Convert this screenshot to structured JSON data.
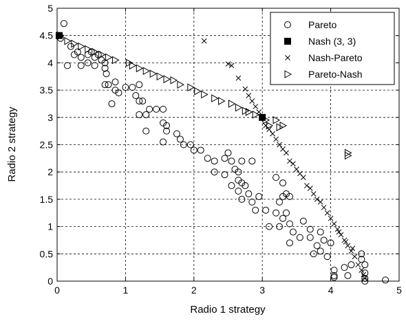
{
  "chart_data": {
    "type": "scatter",
    "title": "",
    "xlabel": "Radio 1 strategy",
    "ylabel": "Radio 2 strategy",
    "xlim": [
      0,
      5
    ],
    "ylim": [
      0,
      5
    ],
    "xticks": [
      "0",
      "1",
      "2",
      "3",
      "4",
      "5"
    ],
    "yticks": [
      "0",
      "0.5",
      "1",
      "1.5",
      "2",
      "2.5",
      "3",
      "3.5",
      "4",
      "4.5",
      "5"
    ],
    "grid": true,
    "legend_position": "top-right",
    "series": [
      {
        "name": "Pareto",
        "marker": "circle",
        "points": [
          [
            0.1,
            4.72
          ],
          [
            0.05,
            4.45
          ],
          [
            0.2,
            4.3
          ],
          [
            0.3,
            4.2
          ],
          [
            0.25,
            4.15
          ],
          [
            0.35,
            4.1
          ],
          [
            0.45,
            4.15
          ],
          [
            0.5,
            4.2
          ],
          [
            0.55,
            4.1
          ],
          [
            0.6,
            4.15
          ],
          [
            0.65,
            4.05
          ],
          [
            0.7,
            4.0
          ],
          [
            0.15,
            3.95
          ],
          [
            0.35,
            3.95
          ],
          [
            0.45,
            4.0
          ],
          [
            0.55,
            3.95
          ],
          [
            0.7,
            3.9
          ],
          [
            0.72,
            3.8
          ],
          [
            0.75,
            3.6
          ],
          [
            0.85,
            3.65
          ],
          [
            0.7,
            3.6
          ],
          [
            0.85,
            3.5
          ],
          [
            0.9,
            3.45
          ],
          [
            1.0,
            3.55
          ],
          [
            1.1,
            3.55
          ],
          [
            0.8,
            3.25
          ],
          [
            1.2,
            3.6
          ],
          [
            1.15,
            3.4
          ],
          [
            1.2,
            3.3
          ],
          [
            1.25,
            3.3
          ],
          [
            1.35,
            3.15
          ],
          [
            1.45,
            3.15
          ],
          [
            1.55,
            3.15
          ],
          [
            1.3,
            3.05
          ],
          [
            1.2,
            3.05
          ],
          [
            1.3,
            2.75
          ],
          [
            1.55,
            2.9
          ],
          [
            1.6,
            2.85
          ],
          [
            1.6,
            2.75
          ],
          [
            1.55,
            2.55
          ],
          [
            1.75,
            2.7
          ],
          [
            1.8,
            2.6
          ],
          [
            1.85,
            2.5
          ],
          [
            1.95,
            2.5
          ],
          [
            2.0,
            2.4
          ],
          [
            2.1,
            2.4
          ],
          [
            2.2,
            2.25
          ],
          [
            2.3,
            2.2
          ],
          [
            2.45,
            2.25
          ],
          [
            2.55,
            2.2
          ],
          [
            2.5,
            2.35
          ],
          [
            2.6,
            2.05
          ],
          [
            2.65,
            2.0
          ],
          [
            2.7,
            2.2
          ],
          [
            2.85,
            2.2
          ],
          [
            2.3,
            2.0
          ],
          [
            2.45,
            1.95
          ],
          [
            2.65,
            1.85
          ],
          [
            2.7,
            1.8
          ],
          [
            2.75,
            1.75
          ],
          [
            2.55,
            1.75
          ],
          [
            2.65,
            1.65
          ],
          [
            2.7,
            1.5
          ],
          [
            2.8,
            1.6
          ],
          [
            2.85,
            1.45
          ],
          [
            2.95,
            1.55
          ],
          [
            2.9,
            1.3
          ],
          [
            3.05,
            1.3
          ],
          [
            3.1,
            1.0
          ],
          [
            3.2,
            1.25
          ],
          [
            3.3,
            1.15
          ],
          [
            3.35,
            1.25
          ],
          [
            3.25,
            1.45
          ],
          [
            3.3,
            1.55
          ],
          [
            3.35,
            1.6
          ],
          [
            3.3,
            1.8
          ],
          [
            3.4,
            1.55
          ],
          [
            3.2,
            1.9
          ],
          [
            3.25,
            1.0
          ],
          [
            3.4,
            1.05
          ],
          [
            3.45,
            0.9
          ],
          [
            3.55,
            0.8
          ],
          [
            3.7,
            0.8
          ],
          [
            3.6,
            1.1
          ],
          [
            3.7,
            0.95
          ],
          [
            3.8,
            0.65
          ],
          [
            3.85,
            0.9
          ],
          [
            3.9,
            0.75
          ],
          [
            3.95,
            0.45
          ],
          [
            4.0,
            0.7
          ],
          [
            3.75,
            0.5
          ],
          [
            3.85,
            0.55
          ],
          [
            4.05,
            0.2
          ],
          [
            4.05,
            0.1
          ],
          [
            4.05,
            0.07
          ],
          [
            4.2,
            0.25
          ],
          [
            4.25,
            0.1
          ],
          [
            4.3,
            0.3
          ],
          [
            4.45,
            0.4
          ],
          [
            4.45,
            0.5
          ],
          [
            4.5,
            0.15
          ],
          [
            4.5,
            0.3
          ],
          [
            4.5,
            0.05
          ],
          [
            4.8,
            0.02
          ],
          [
            4.5,
            0.0
          ],
          [
            3.4,
            0.7
          ]
        ]
      },
      {
        "name": "Nash (3, 3)",
        "marker": "square",
        "points": [
          [
            3.0,
            3.0
          ],
          [
            0.03,
            4.5
          ]
        ]
      },
      {
        "name": "Nash-Pareto",
        "marker": "x",
        "points": [
          [
            2.15,
            4.4
          ],
          [
            2.5,
            3.98
          ],
          [
            2.55,
            3.95
          ],
          [
            2.65,
            3.72
          ],
          [
            2.75,
            3.52
          ],
          [
            2.8,
            3.4
          ],
          [
            2.85,
            3.3
          ],
          [
            2.9,
            3.2
          ],
          [
            2.95,
            3.1
          ],
          [
            3.0,
            3.0
          ],
          [
            3.05,
            2.85
          ],
          [
            3.1,
            2.78
          ],
          [
            3.15,
            2.7
          ],
          [
            3.2,
            2.6
          ],
          [
            3.25,
            2.5
          ],
          [
            3.3,
            2.42
          ],
          [
            3.35,
            2.35
          ],
          [
            3.4,
            2.2
          ],
          [
            3.45,
            2.15
          ],
          [
            3.5,
            2.05
          ],
          [
            3.55,
            1.97
          ],
          [
            3.6,
            1.9
          ],
          [
            3.65,
            1.75
          ],
          [
            3.7,
            1.7
          ],
          [
            3.75,
            1.6
          ],
          [
            3.8,
            1.5
          ],
          [
            3.85,
            1.45
          ],
          [
            3.9,
            1.35
          ],
          [
            3.95,
            1.25
          ],
          [
            4.0,
            1.15
          ],
          [
            4.05,
            1.05
          ],
          [
            4.1,
            0.95
          ],
          [
            4.15,
            0.85
          ],
          [
            4.2,
            0.75
          ],
          [
            4.25,
            0.65
          ],
          [
            4.3,
            0.55
          ],
          [
            4.35,
            0.45
          ],
          [
            4.4,
            0.3
          ],
          [
            4.45,
            0.2
          ],
          [
            4.48,
            0.12
          ],
          [
            4.5,
            0.05
          ],
          [
            4.32,
            0.6
          ],
          [
            4.22,
            0.72
          ],
          [
            4.12,
            0.9
          ]
        ]
      },
      {
        "name": "Pareto-Nash",
        "marker": "triangle-right",
        "points": [
          [
            0.05,
            4.5
          ],
          [
            0.15,
            4.4
          ],
          [
            0.25,
            4.35
          ],
          [
            0.35,
            4.3
          ],
          [
            0.45,
            4.25
          ],
          [
            0.55,
            4.2
          ],
          [
            0.65,
            4.15
          ],
          [
            0.75,
            4.1
          ],
          [
            0.85,
            4.05
          ],
          [
            1.05,
            4.0
          ],
          [
            1.1,
            3.95
          ],
          [
            1.2,
            3.9
          ],
          [
            1.3,
            3.85
          ],
          [
            1.4,
            3.8
          ],
          [
            1.5,
            3.75
          ],
          [
            1.6,
            3.7
          ],
          [
            1.7,
            3.68
          ],
          [
            1.8,
            3.6
          ],
          [
            1.95,
            3.55
          ],
          [
            2.05,
            3.48
          ],
          [
            2.15,
            3.42
          ],
          [
            2.3,
            3.35
          ],
          [
            2.4,
            3.3
          ],
          [
            2.55,
            3.25
          ],
          [
            2.65,
            3.18
          ],
          [
            2.75,
            3.12
          ],
          [
            2.8,
            3.1
          ],
          [
            2.9,
            3.05
          ],
          [
            3.05,
            2.95
          ],
          [
            3.1,
            2.85
          ],
          [
            3.2,
            2.95
          ],
          [
            3.3,
            2.85
          ],
          [
            3.25,
            2.82
          ],
          [
            4.25,
            2.35
          ],
          [
            4.25,
            2.3
          ]
        ]
      }
    ]
  }
}
